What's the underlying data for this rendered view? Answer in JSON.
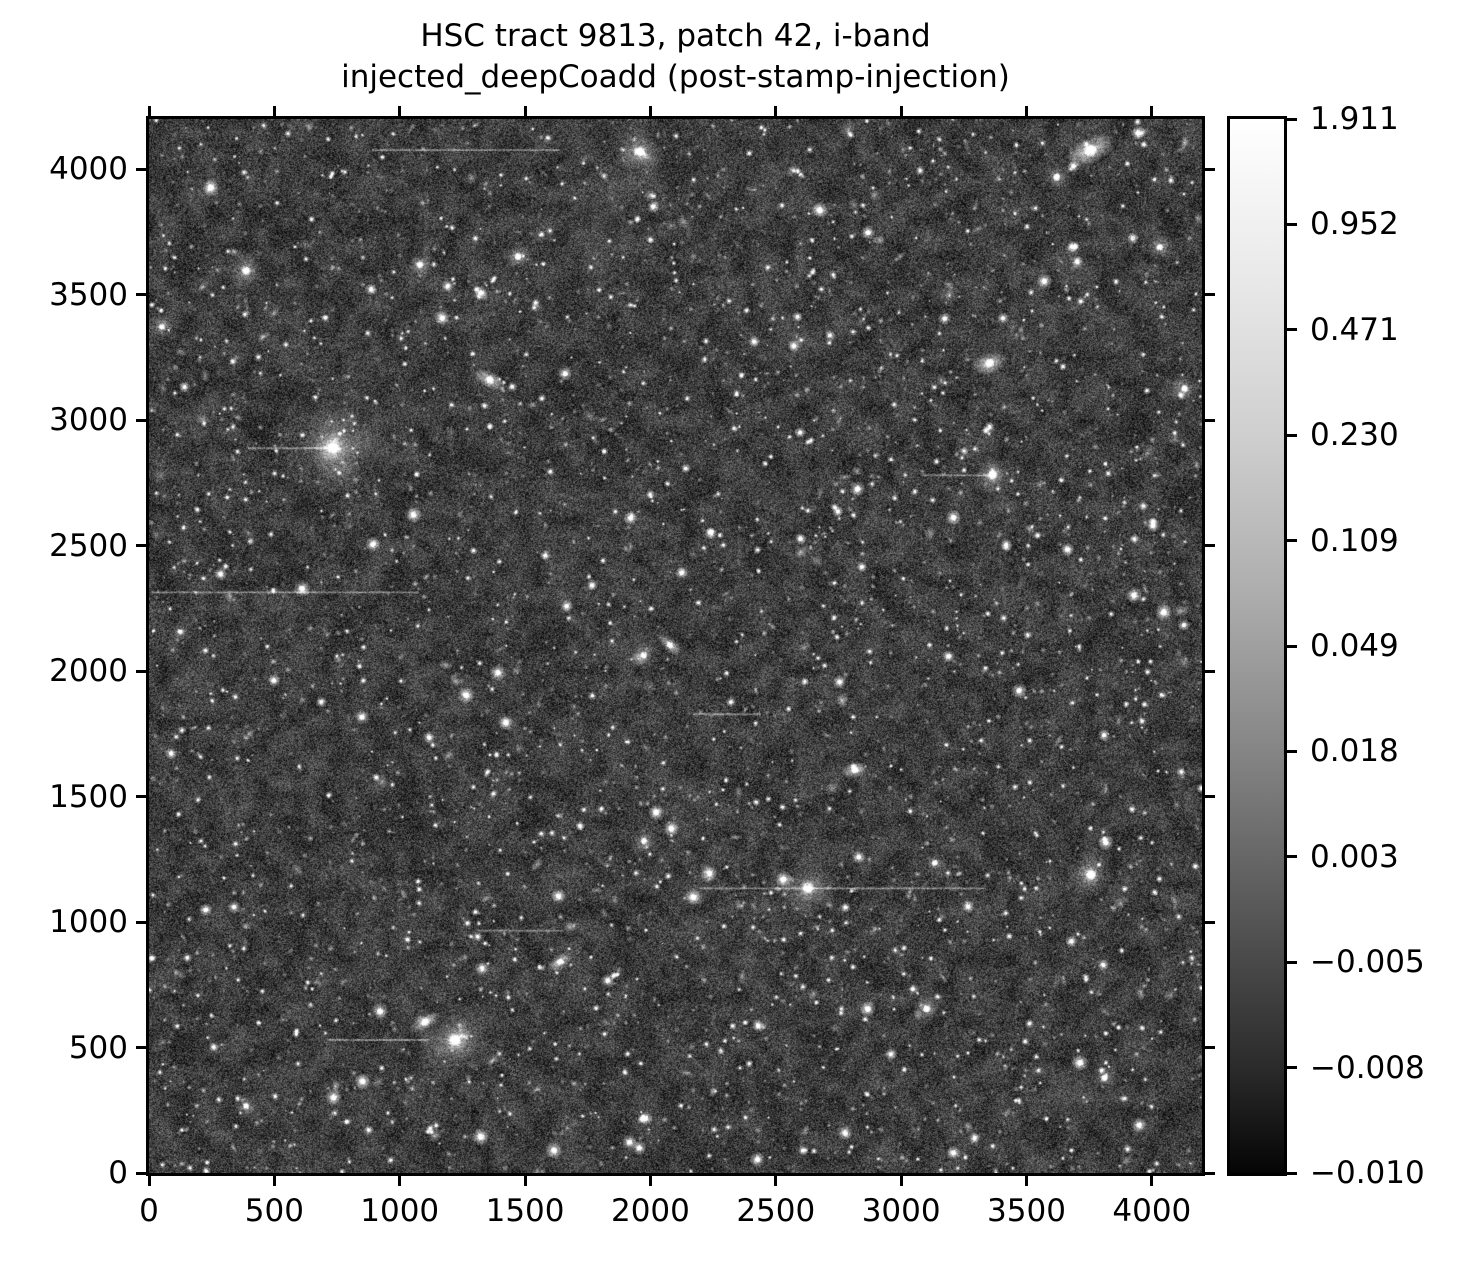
{
  "title": {
    "line1": "HSC tract 9813, patch 42, i-band",
    "line2": "injected_deepCoadd (post-stamp-injection)"
  },
  "chart_data": {
    "type": "heatmap",
    "title": "HSC tract 9813, patch 42, i-band\ninjected_deepCoadd (post-stamp-injection)",
    "xlabel": "",
    "ylabel": "",
    "xlim": [
      0,
      4200
    ],
    "ylim": [
      0,
      4200
    ],
    "x_tick_values": [
      0,
      500,
      1000,
      1500,
      2000,
      2500,
      3000,
      3500,
      4000
    ],
    "x_tick_labels": [
      "0",
      "500",
      "1000",
      "1500",
      "2000",
      "2500",
      "3000",
      "3500",
      "4000"
    ],
    "y_tick_values": [
      0,
      500,
      1000,
      1500,
      2000,
      2500,
      3000,
      3500,
      4000
    ],
    "y_tick_labels": [
      "0",
      "500",
      "1000",
      "1500",
      "2000",
      "2500",
      "3000",
      "3500",
      "4000"
    ],
    "grid": false,
    "colormap": "grayscale",
    "stretch": "asinh (nonlinear tick values, evenly spaced ticks)",
    "colorbar": {
      "position": "right",
      "tick_labels": [
        "1.911",
        "0.952",
        "0.471",
        "0.230",
        "0.109",
        "0.049",
        "0.018",
        "0.003",
        "−0.005",
        "−0.008",
        "−0.010"
      ],
      "tick_values": [
        1.911,
        0.952,
        0.471,
        0.23,
        0.109,
        0.049,
        0.018,
        0.003,
        -0.005,
        -0.008,
        -0.01
      ],
      "vmin": -0.01,
      "vmax": 1.911,
      "top_color": "#ffffff",
      "bottom_color": "#050505"
    },
    "content": "Dense grayscale deep-sky star and galaxy field (coadded HSC image with injected postage stamps); mottled noise background with thousands of point sources, several bright halo stars and fuzzy galaxies, and faint horizontal streak artifacts",
    "notable_sources": [
      {
        "x": 735,
        "y": 2890,
        "core": 26,
        "halo": 200,
        "kind": "star"
      },
      {
        "x": 1960,
        "y": 4070,
        "core": 20,
        "halo": 100,
        "kind": "star"
      },
      {
        "x": 3755,
        "y": 4075,
        "core": 28,
        "halo": 110,
        "kind": "galaxy",
        "angle": -25,
        "ratio": 0.5
      },
      {
        "x": 1472,
        "y": 3652,
        "core": 16,
        "halo": 62,
        "kind": "star"
      },
      {
        "x": 1081,
        "y": 3620,
        "core": 15,
        "halo": 55,
        "kind": "star"
      },
      {
        "x": 387,
        "y": 3595,
        "core": 18,
        "halo": 75,
        "kind": "star"
      },
      {
        "x": 3366,
        "y": 2782,
        "core": 20,
        "halo": 85,
        "kind": "star"
      },
      {
        "x": 1220,
        "y": 530,
        "core": 26,
        "halo": 150,
        "kind": "star"
      },
      {
        "x": 1101,
        "y": 602,
        "core": 20,
        "halo": 70,
        "kind": "galaxy",
        "angle": -30,
        "ratio": 0.45
      },
      {
        "x": 2628,
        "y": 1136,
        "core": 24,
        "halo": 110,
        "kind": "star"
      },
      {
        "x": 3757,
        "y": 1188,
        "core": 22,
        "halo": 95,
        "kind": "star"
      },
      {
        "x": 1974,
        "y": 2064,
        "core": 15,
        "halo": 55,
        "kind": "star"
      },
      {
        "x": 3353,
        "y": 3228,
        "core": 20,
        "halo": 80,
        "kind": "galaxy",
        "angle": -20,
        "ratio": 0.55
      },
      {
        "x": 1360,
        "y": 3160,
        "core": 18,
        "halo": 70,
        "kind": "galaxy",
        "angle": 30,
        "ratio": 0.5
      },
      {
        "x": 52,
        "y": 3372,
        "core": 14,
        "halo": 48,
        "kind": "star"
      },
      {
        "x": 1974,
        "y": 1323,
        "core": 15,
        "halo": 55,
        "kind": "star"
      },
      {
        "x": 4131,
        "y": 3125,
        "core": 16,
        "halo": 60,
        "kind": "star"
      },
      {
        "x": 2078,
        "y": 2104,
        "core": 15,
        "halo": 55,
        "kind": "galaxy",
        "angle": 40,
        "ratio": 0.5
      },
      {
        "x": 3102,
        "y": 654,
        "core": 16,
        "halo": 60,
        "kind": "star"
      },
      {
        "x": 3811,
        "y": 379,
        "core": 16,
        "halo": 55,
        "kind": "star"
      },
      {
        "x": 3134,
        "y": 1236,
        "core": 15,
        "halo": 50,
        "kind": "star"
      },
      {
        "x": 124,
        "y": 2157,
        "core": 13,
        "halo": 45,
        "kind": "star"
      },
      {
        "x": 3620,
        "y": 3967,
        "core": 16,
        "halo": 60,
        "kind": "star"
      },
      {
        "x": 4031,
        "y": 3688,
        "core": 15,
        "halo": 55,
        "kind": "star"
      },
      {
        "x": 1639,
        "y": 841,
        "core": 16,
        "halo": 60,
        "kind": "galaxy",
        "angle": -35,
        "ratio": 0.5
      },
      {
        "x": 387,
        "y": 267,
        "core": 14,
        "halo": 50,
        "kind": "star"
      },
      {
        "x": 2815,
        "y": 1606,
        "core": 16,
        "halo": 55,
        "kind": "galaxy",
        "angle": -15,
        "ratio": 0.55
      }
    ],
    "streak_artifacts": [
      {
        "y": 2890,
        "x1": 395,
        "x2": 730
      },
      {
        "y": 4078,
        "x1": 890,
        "x2": 1640
      },
      {
        "y": 2316,
        "x1": 8,
        "x2": 1075
      },
      {
        "y": 532,
        "x1": 715,
        "x2": 1120
      },
      {
        "y": 2782,
        "x1": 3080,
        "x2": 3350
      },
      {
        "y": 1136,
        "x1": 2200,
        "x2": 3340
      },
      {
        "y": 968,
        "x1": 1310,
        "x2": 1650
      },
      {
        "y": 1830,
        "x1": 2170,
        "x2": 2440
      }
    ]
  }
}
